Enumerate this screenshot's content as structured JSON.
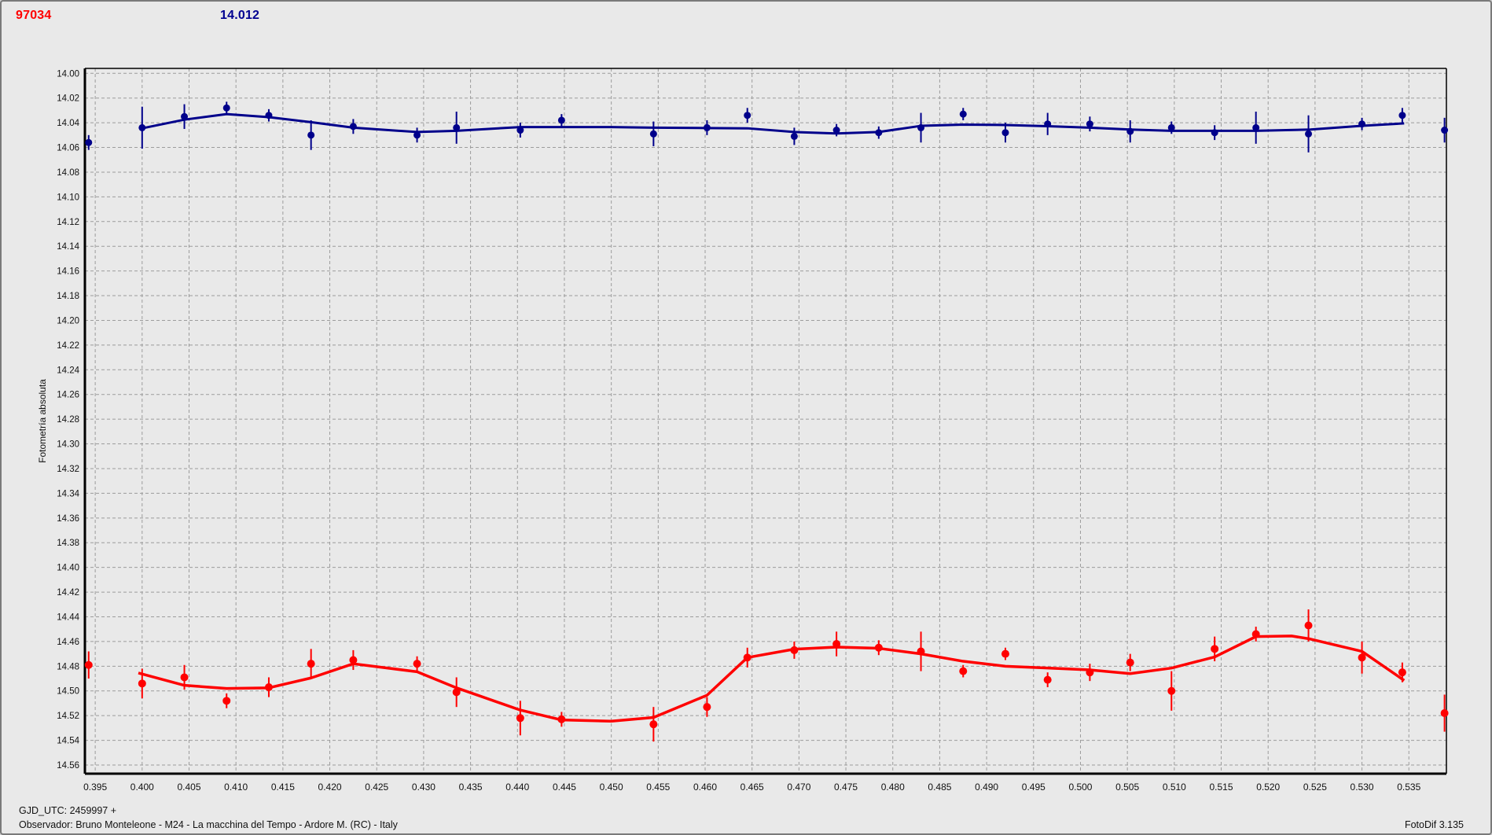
{
  "header": {
    "object_id": "97034",
    "magnitude": "14.012",
    "object_id_color": "#ff0000",
    "magnitude_color": "#000090"
  },
  "footer": {
    "gjd_line": "GJD_UTC: 2459997 +",
    "observer_line": "Observador: Bruno Monteleone - M24 - La macchina del Tempo - Ardore M. (RC) - Italy",
    "app_version": "FotoDif 3.135"
  },
  "chart_data": {
    "type": "scatter",
    "title": "",
    "xlabel": "",
    "ylabel": "Fotometría absoluta",
    "grid": true,
    "y_axis_inverted_magnitudes": true,
    "layout": {
      "x_range": [
        0.3939,
        0.539
      ],
      "y_range": [
        13.996,
        14.567
      ],
      "grid_color": "#9c9c9c",
      "axis_color": "#000000",
      "background": "#e9e9e9"
    },
    "x_axis": {
      "ticks": [
        0.395,
        0.4,
        0.405,
        0.41,
        0.415,
        0.42,
        0.425,
        0.43,
        0.435,
        0.44,
        0.445,
        0.45,
        0.455,
        0.46,
        0.465,
        0.47,
        0.475,
        0.48,
        0.485,
        0.49,
        0.495,
        0.5,
        0.505,
        0.51,
        0.515,
        0.52,
        0.525,
        0.53,
        0.535
      ],
      "tick_labels": [
        "0.395",
        "0.400",
        "0.405",
        "0.410",
        "0.415",
        "0.420",
        "0.425",
        "0.430",
        "0.435",
        "0.440",
        "0.445",
        "0.450",
        "0.455",
        "0.460",
        "0.465",
        "0.470",
        "0.475",
        "0.480",
        "0.485",
        "0.490",
        "0.495",
        "0.500",
        "0.505",
        "0.510",
        "0.515",
        "0.520",
        "0.525",
        "0.530",
        "0.535"
      ]
    },
    "y_axis": {
      "label": "Fotometría absoluta",
      "ticks": [
        14.0,
        14.02,
        14.04,
        14.06,
        14.08,
        14.1,
        14.12,
        14.14,
        14.16,
        14.18,
        14.2,
        14.22,
        14.24,
        14.26,
        14.28,
        14.3,
        14.32,
        14.34,
        14.36,
        14.38,
        14.4,
        14.42,
        14.44,
        14.46,
        14.48,
        14.5,
        14.52,
        14.54,
        14.56
      ],
      "tick_labels": [
        "14.00",
        "14.02",
        "14.04",
        "14.06",
        "14.08",
        "14.10",
        "14.12",
        "14.14",
        "14.16",
        "14.18",
        "14.20",
        "14.22",
        "14.24",
        "14.26",
        "14.28",
        "14.30",
        "14.32",
        "14.34",
        "14.36",
        "14.38",
        "14.40",
        "14.42",
        "14.44",
        "14.46",
        "14.48",
        "14.50",
        "14.52",
        "14.54",
        "14.56"
      ]
    },
    "series": [
      {
        "name": "comparison-blue",
        "color": "#00008B",
        "marker_radius": 4.5,
        "line_width": 3,
        "x": [
          0.3943,
          0.4,
          0.4045,
          0.409,
          0.4135,
          0.418,
          0.4225,
          0.4293,
          0.4335,
          0.4403,
          0.4447,
          0.4545,
          0.4602,
          0.4645,
          0.4695,
          0.474,
          0.4785,
          0.483,
          0.4875,
          0.492,
          0.4965,
          0.501,
          0.5053,
          0.5097,
          0.5143,
          0.5187,
          0.5243,
          0.53,
          0.5343,
          0.5388
        ],
        "mag": [
          14.056,
          14.044,
          14.035,
          14.028,
          14.034,
          14.05,
          14.043,
          14.05,
          14.044,
          14.046,
          14.038,
          14.049,
          14.044,
          14.034,
          14.051,
          14.046,
          14.048,
          14.044,
          14.033,
          14.048,
          14.041,
          14.041,
          14.047,
          14.044,
          14.048,
          14.044,
          14.049,
          14.041,
          14.034,
          14.046
        ],
        "err": [
          0.006,
          0.017,
          0.01,
          0.005,
          0.005,
          0.012,
          0.006,
          0.006,
          0.013,
          0.006,
          0.005,
          0.01,
          0.006,
          0.006,
          0.007,
          0.005,
          0.005,
          0.012,
          0.005,
          0.008,
          0.009,
          0.006,
          0.009,
          0.005,
          0.006,
          0.013,
          0.015,
          0.005,
          0.006,
          0.01
        ],
        "fit": {
          "x": [
            0.4,
            0.4045,
            0.409,
            0.4135,
            0.418,
            0.4225,
            0.4293,
            0.4335,
            0.4403,
            0.4447,
            0.45,
            0.4545,
            0.4602,
            0.4645,
            0.4695,
            0.474,
            0.4785,
            0.483,
            0.4875,
            0.492,
            0.4965,
            0.501,
            0.5053,
            0.5097,
            0.5143,
            0.5187,
            0.5245,
            0.53,
            0.5345
          ],
          "mag": [
            14.0445,
            14.0375,
            14.033,
            14.0355,
            14.0395,
            14.044,
            14.0475,
            14.0465,
            14.0435,
            14.0435,
            14.0435,
            14.044,
            14.0443,
            14.0445,
            14.0475,
            14.0487,
            14.0475,
            14.0425,
            14.0415,
            14.0418,
            14.0428,
            14.044,
            14.0455,
            14.0465,
            14.0465,
            14.0465,
            14.0455,
            14.0425,
            14.0405
          ]
        }
      },
      {
        "name": "asteroid-red",
        "color": "#ff0000",
        "marker_radius": 5,
        "line_width": 3.5,
        "x": [
          0.3943,
          0.4,
          0.4045,
          0.409,
          0.4135,
          0.418,
          0.4225,
          0.4293,
          0.4335,
          0.4403,
          0.4447,
          0.4545,
          0.4602,
          0.4645,
          0.4695,
          0.474,
          0.4785,
          0.483,
          0.4875,
          0.492,
          0.4965,
          0.501,
          0.5053,
          0.5097,
          0.5143,
          0.5187,
          0.5243,
          0.53,
          0.5343,
          0.5388
        ],
        "mag": [
          14.479,
          14.494,
          14.489,
          14.508,
          14.497,
          14.478,
          14.475,
          14.478,
          14.501,
          14.522,
          14.523,
          14.527,
          14.513,
          14.473,
          14.467,
          14.462,
          14.465,
          14.468,
          14.484,
          14.47,
          14.491,
          14.485,
          14.477,
          14.5,
          14.466,
          14.454,
          14.447,
          14.473,
          14.485,
          14.518
        ],
        "err": [
          0.011,
          0.012,
          0.01,
          0.006,
          0.008,
          0.012,
          0.008,
          0.006,
          0.012,
          0.014,
          0.006,
          0.014,
          0.008,
          0.008,
          0.007,
          0.01,
          0.006,
          0.016,
          0.005,
          0.005,
          0.006,
          0.007,
          0.007,
          0.016,
          0.01,
          0.006,
          0.013,
          0.013,
          0.008,
          0.015
        ],
        "fit": {
          "x": [
            0.3996,
            0.4045,
            0.409,
            0.4135,
            0.418,
            0.4225,
            0.4293,
            0.4335,
            0.4403,
            0.4447,
            0.45,
            0.4545,
            0.4602,
            0.4645,
            0.4695,
            0.474,
            0.4785,
            0.483,
            0.4875,
            0.492,
            0.4965,
            0.501,
            0.5053,
            0.5097,
            0.5143,
            0.5187,
            0.5225,
            0.5245,
            0.53,
            0.5345
          ],
          "mag": [
            14.4855,
            14.4955,
            14.498,
            14.4975,
            14.4895,
            14.478,
            14.4845,
            14.4975,
            14.5155,
            14.5235,
            14.5245,
            14.5215,
            14.5035,
            14.473,
            14.4662,
            14.4645,
            14.4655,
            14.47,
            14.476,
            14.48,
            14.4815,
            14.483,
            14.486,
            14.4815,
            14.4725,
            14.456,
            14.4555,
            14.458,
            14.468,
            14.4915
          ]
        }
      }
    ]
  }
}
